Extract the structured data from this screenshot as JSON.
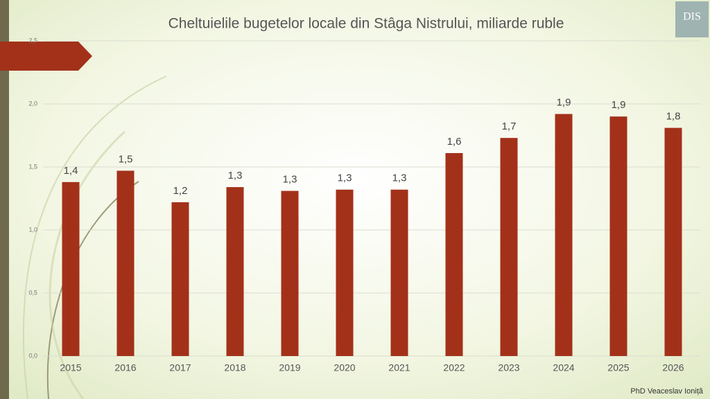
{
  "chart_data": {
    "type": "bar",
    "title": "Cheltuielile bugetelor locale din Stâga Nistrului, miliarde ruble",
    "categories": [
      "2015",
      "2016",
      "2017",
      "2018",
      "2019",
      "2020",
      "2021",
      "2022",
      "2023",
      "2024",
      "2025",
      "2026"
    ],
    "values": [
      1.38,
      1.47,
      1.22,
      1.34,
      1.31,
      1.32,
      1.32,
      1.61,
      1.73,
      1.92,
      1.9,
      1.81
    ],
    "value_labels": [
      "1,4",
      "1,5",
      "1,2",
      "1,3",
      "1,3",
      "1,3",
      "1,3",
      "1,6",
      "1,7",
      "1,9",
      "1,9",
      "1,8"
    ],
    "color": "#a33119",
    "ylim": [
      0,
      2.5
    ],
    "yticks": [
      {
        "value": 0,
        "label": "0,0"
      },
      {
        "value": 0.5,
        "label": "0,5"
      },
      {
        "value": 1,
        "label": "1,0"
      },
      {
        "value": 1.5,
        "label": "1,5"
      },
      {
        "value": 2,
        "label": "2,0"
      },
      {
        "value": 2.5,
        "label": "2,5"
      }
    ],
    "grid": true
  },
  "footer": "PhD Veaceslav Ioniță",
  "logo": "DIS"
}
